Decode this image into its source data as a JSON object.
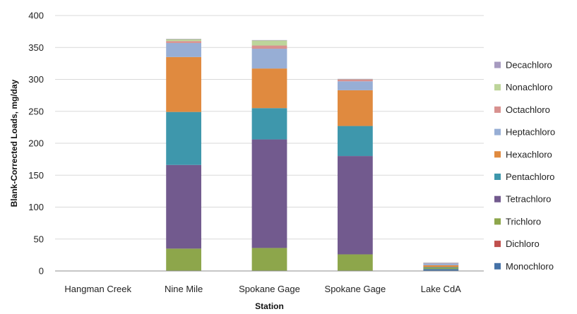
{
  "chart_data": {
    "type": "bar",
    "stacked": true,
    "title": "",
    "xlabel": "Station",
    "ylabel": "Blank-Corrected Loads, mg/day",
    "ylim": [
      0,
      400
    ],
    "yticks": [
      0,
      50,
      100,
      150,
      200,
      250,
      300,
      350,
      400
    ],
    "grid": true,
    "legend_position": "right",
    "categories": [
      "Hangman Creek",
      "Nine Mile",
      "Spokane Gage",
      "Spokane Gage",
      "Lake CdA"
    ],
    "series": [
      {
        "name": "Monochloro",
        "color": "#4572A7",
        "values": [
          0,
          0,
          0,
          0,
          3
        ]
      },
      {
        "name": "Dichloro",
        "color": "#C0504D",
        "values": [
          0,
          0,
          0,
          0,
          0
        ]
      },
      {
        "name": "Trichloro",
        "color": "#8DA64B",
        "values": [
          0.5,
          35,
          36,
          26,
          2
        ]
      },
      {
        "name": "Tetrachloro",
        "color": "#725A8E",
        "values": [
          0,
          131,
          170,
          154,
          0
        ]
      },
      {
        "name": "Pentachloro",
        "color": "#3E97AC",
        "values": [
          0,
          83,
          49,
          47,
          1
        ]
      },
      {
        "name": "Hexachloro",
        "color": "#E08A3F",
        "values": [
          0,
          86,
          62,
          56,
          3
        ]
      },
      {
        "name": "Heptachloro",
        "color": "#97AED5",
        "values": [
          0,
          22,
          31,
          14,
          3
        ]
      },
      {
        "name": "Octachloro",
        "color": "#D8918F",
        "values": [
          0,
          3,
          5,
          3,
          0.5
        ]
      },
      {
        "name": "Nonachloro",
        "color": "#BDD59A",
        "values": [
          0,
          3,
          8,
          0.5,
          0.3
        ]
      },
      {
        "name": "Decachloro",
        "color": "#A79BC0",
        "values": [
          0,
          0.5,
          0.5,
          0.3,
          0.2
        ]
      }
    ]
  }
}
